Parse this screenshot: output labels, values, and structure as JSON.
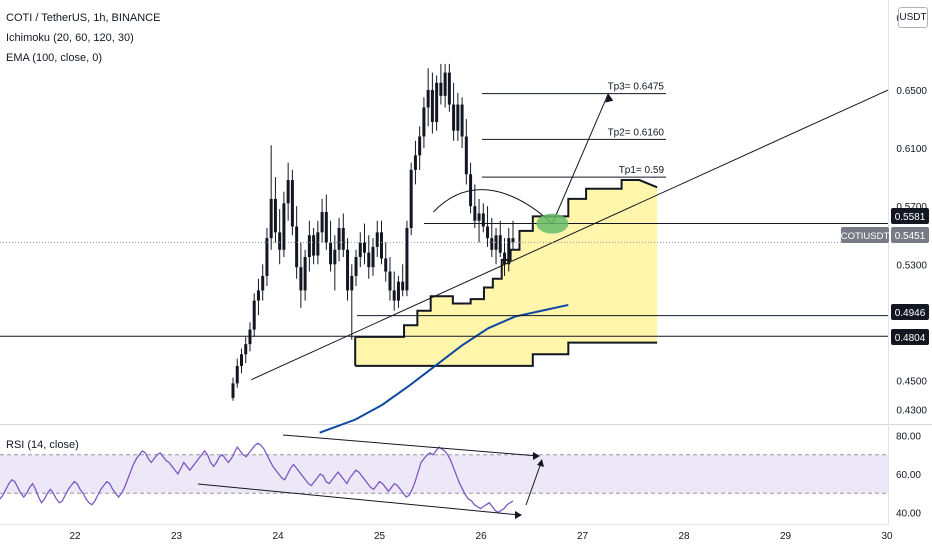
{
  "header": {
    "symbol_line": "COTI / TetherUS, 1h, BINANCE",
    "indicator_1": "Ichimoku (20, 60, 120, 30)",
    "indicator_2": "EMA (100, close, 0)",
    "currency": "USDT"
  },
  "rsi_panel": {
    "legend": "RSI (14, close)",
    "ticks": [
      "80.00",
      "60.00",
      "40.00"
    ],
    "ylim": [
      35,
      85
    ],
    "upper_band": 70,
    "lower_band": 50,
    "values": [
      47,
      49,
      52,
      55,
      57,
      56,
      53,
      50,
      48,
      50,
      53,
      55,
      52,
      48,
      45,
      47,
      50,
      52,
      50,
      47,
      45,
      46,
      49,
      52,
      54,
      56,
      55,
      52,
      50,
      47,
      45,
      44,
      46,
      49,
      52,
      54,
      56,
      55,
      52,
      50,
      48,
      50,
      53,
      57,
      61,
      65,
      68,
      70,
      72,
      71,
      68,
      66,
      68,
      70,
      71,
      69,
      67,
      66,
      64,
      62,
      60,
      63,
      66,
      64,
      62,
      64,
      66,
      68,
      70,
      72,
      70,
      66,
      64,
      66,
      69,
      70,
      68,
      66,
      68,
      71,
      74,
      72,
      70,
      69,
      71,
      73,
      75,
      76,
      75,
      73,
      70,
      67,
      64,
      62,
      60,
      58,
      57,
      60,
      63,
      65,
      63,
      61,
      59,
      57,
      55,
      54,
      56,
      58,
      60,
      59,
      56,
      55,
      57,
      59,
      61,
      59,
      57,
      55,
      58,
      60,
      62,
      61,
      59,
      57,
      55,
      53,
      52,
      54,
      56,
      55,
      53,
      51,
      53,
      55,
      54,
      52,
      50,
      48,
      49,
      52,
      56,
      61,
      66,
      68,
      70,
      71,
      70,
      72,
      74,
      73,
      72,
      70,
      67,
      63,
      59,
      55,
      52,
      49,
      47,
      46,
      44,
      43,
      42,
      43,
      44,
      45,
      43,
      41,
      40,
      41,
      42,
      44,
      45,
      46
    ]
  },
  "chart_data": {
    "type": "candlestick",
    "title": "COTI / TetherUS, 1h, BINANCE",
    "ylim": [
      0.42,
      0.712
    ],
    "y_ticks": [
      "0.7000",
      "0.6500",
      "0.6100",
      "0.5700",
      "0.5300",
      "0.4500",
      "0.4300"
    ],
    "x_labels": [
      "22",
      "23",
      "24",
      "25",
      "26",
      "27",
      "28",
      "29",
      "30"
    ],
    "grid": false,
    "ohlc": [
      [
        0.438,
        0.452,
        0.436,
        0.448
      ],
      [
        0.448,
        0.465,
        0.445,
        0.46
      ],
      [
        0.46,
        0.472,
        0.455,
        0.468
      ],
      [
        0.468,
        0.48,
        0.462,
        0.475
      ],
      [
        0.475,
        0.49,
        0.47,
        0.485
      ],
      [
        0.485,
        0.51,
        0.48,
        0.505
      ],
      [
        0.505,
        0.52,
        0.495,
        0.512
      ],
      [
        0.512,
        0.53,
        0.505,
        0.522
      ],
      [
        0.522,
        0.555,
        0.515,
        0.548
      ],
      [
        0.548,
        0.612,
        0.54,
        0.575
      ],
      [
        0.575,
        0.59,
        0.545,
        0.552
      ],
      [
        0.552,
        0.568,
        0.53,
        0.54
      ],
      [
        0.54,
        0.58,
        0.535,
        0.572
      ],
      [
        0.572,
        0.6,
        0.56,
        0.588
      ],
      [
        0.588,
        0.595,
        0.55,
        0.556
      ],
      [
        0.556,
        0.57,
        0.52,
        0.528
      ],
      [
        0.528,
        0.545,
        0.5,
        0.512
      ],
      [
        0.512,
        0.54,
        0.505,
        0.535
      ],
      [
        0.535,
        0.56,
        0.525,
        0.55
      ],
      [
        0.55,
        0.555,
        0.53,
        0.536
      ],
      [
        0.536,
        0.56,
        0.53,
        0.552
      ],
      [
        0.552,
        0.575,
        0.545,
        0.566
      ],
      [
        0.566,
        0.578,
        0.54,
        0.545
      ],
      [
        0.545,
        0.56,
        0.525,
        0.53
      ],
      [
        0.53,
        0.55,
        0.512,
        0.54
      ],
      [
        0.54,
        0.562,
        0.532,
        0.555
      ],
      [
        0.555,
        0.565,
        0.535,
        0.54
      ],
      [
        0.54,
        0.548,
        0.505,
        0.512
      ],
      [
        0.512,
        0.53,
        0.478,
        0.522
      ],
      [
        0.522,
        0.54,
        0.515,
        0.535
      ],
      [
        0.535,
        0.552,
        0.528,
        0.545
      ],
      [
        0.545,
        0.558,
        0.53,
        0.538
      ],
      [
        0.538,
        0.55,
        0.52,
        0.528
      ],
      [
        0.528,
        0.548,
        0.522,
        0.542
      ],
      [
        0.542,
        0.56,
        0.535,
        0.552
      ],
      [
        0.552,
        0.56,
        0.53,
        0.534
      ],
      [
        0.534,
        0.545,
        0.518,
        0.525
      ],
      [
        0.525,
        0.535,
        0.505,
        0.512
      ],
      [
        0.512,
        0.525,
        0.498,
        0.505
      ],
      [
        0.505,
        0.522,
        0.5,
        0.518
      ],
      [
        0.518,
        0.53,
        0.508,
        0.512
      ],
      [
        0.512,
        0.56,
        0.508,
        0.555
      ],
      [
        0.555,
        0.6,
        0.55,
        0.595
      ],
      [
        0.595,
        0.615,
        0.585,
        0.605
      ],
      [
        0.605,
        0.625,
        0.595,
        0.618
      ],
      [
        0.618,
        0.645,
        0.61,
        0.638
      ],
      [
        0.638,
        0.665,
        0.625,
        0.65
      ],
      [
        0.65,
        0.662,
        0.62,
        0.628
      ],
      [
        0.628,
        0.66,
        0.622,
        0.655
      ],
      [
        0.655,
        0.668,
        0.64,
        0.646
      ],
      [
        0.646,
        0.668,
        0.638,
        0.662
      ],
      [
        0.662,
        0.668,
        0.635,
        0.64
      ],
      [
        0.64,
        0.655,
        0.615,
        0.622
      ],
      [
        0.622,
        0.648,
        0.615,
        0.64
      ],
      [
        0.64,
        0.645,
        0.61,
        0.618
      ],
      [
        0.618,
        0.63,
        0.585,
        0.592
      ],
      [
        0.592,
        0.6,
        0.565,
        0.57
      ],
      [
        0.57,
        0.585,
        0.555,
        0.56
      ],
      [
        0.56,
        0.575,
        0.545,
        0.565
      ],
      [
        0.565,
        0.572,
        0.552,
        0.556
      ],
      [
        0.556,
        0.57,
        0.542,
        0.548
      ],
      [
        0.548,
        0.562,
        0.535,
        0.54
      ],
      [
        0.54,
        0.555,
        0.53,
        0.55
      ],
      [
        0.55,
        0.56,
        0.535,
        0.538
      ],
      [
        0.538,
        0.548,
        0.522,
        0.53
      ],
      [
        0.53,
        0.555,
        0.525,
        0.548
      ],
      [
        0.548,
        0.56,
        0.54,
        0.545
      ]
    ],
    "ema": [
      [
        0.36,
        0.414
      ],
      [
        0.4,
        0.423
      ],
      [
        0.43,
        0.433
      ],
      [
        0.46,
        0.446
      ],
      [
        0.49,
        0.46
      ],
      [
        0.52,
        0.474
      ],
      [
        0.55,
        0.486
      ],
      [
        0.58,
        0.494
      ],
      [
        0.61,
        0.498
      ],
      [
        0.64,
        0.502
      ]
    ],
    "cloud_upper": [
      [
        0.4,
        0.48
      ],
      [
        0.455,
        0.48
      ],
      [
        0.455,
        0.488
      ],
      [
        0.47,
        0.488
      ],
      [
        0.47,
        0.498
      ],
      [
        0.485,
        0.498
      ],
      [
        0.485,
        0.508
      ],
      [
        0.51,
        0.508
      ],
      [
        0.51,
        0.503
      ],
      [
        0.53,
        0.503
      ],
      [
        0.53,
        0.506
      ],
      [
        0.545,
        0.506
      ],
      [
        0.545,
        0.514
      ],
      [
        0.555,
        0.514
      ],
      [
        0.555,
        0.52
      ],
      [
        0.565,
        0.52
      ],
      [
        0.565,
        0.533
      ],
      [
        0.575,
        0.533
      ],
      [
        0.575,
        0.54
      ],
      [
        0.585,
        0.54
      ],
      [
        0.585,
        0.553
      ],
      [
        0.6,
        0.553
      ],
      [
        0.6,
        0.563
      ],
      [
        0.64,
        0.563
      ],
      [
        0.64,
        0.575
      ],
      [
        0.66,
        0.575
      ],
      [
        0.66,
        0.582
      ],
      [
        0.7,
        0.582
      ],
      [
        0.7,
        0.588
      ],
      [
        0.72,
        0.588
      ],
      [
        0.74,
        0.583
      ]
    ],
    "cloud_lower": [
      [
        0.4,
        0.46
      ],
      [
        0.6,
        0.46
      ],
      [
        0.6,
        0.468
      ],
      [
        0.64,
        0.468
      ],
      [
        0.64,
        0.476
      ],
      [
        0.74,
        0.476
      ]
    ],
    "levels": [
      0.5581,
      0.4946,
      0.4804
    ],
    "targets": [
      {
        "label": "Tp1= 0.59",
        "value": 0.59
      },
      {
        "label": "Tp2= 0.6160",
        "value": 0.616
      },
      {
        "label": "Tp3= 0.6475",
        "value": 0.6475
      }
    ],
    "price_labels": {
      "level_1": "0.5581",
      "current_name": "COTIUSDT",
      "current_value": "0.5451",
      "level_2": "0.4946",
      "level_3": "0.4804"
    },
    "current_price": 0.5451,
    "trendline": [
      [
        0.283,
        0.4505
      ],
      [
        1.0,
        0.65
      ]
    ],
    "projection": [
      [
        0.488,
        0.566
      ],
      [
        0.535,
        0.596
      ],
      [
        0.59,
        0.576
      ],
      [
        0.622,
        0.558
      ],
      [
        0.685,
        0.6475
      ]
    ],
    "highlight_point": [
      0.622,
      0.558
    ]
  }
}
